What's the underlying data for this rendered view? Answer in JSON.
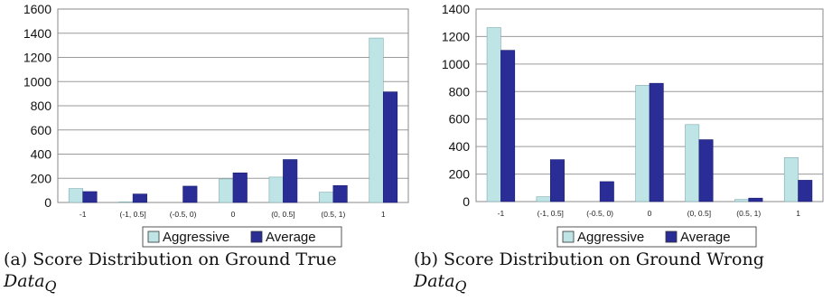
{
  "chart_data": [
    {
      "type": "bar",
      "categories": [
        "-1",
        "(-1, 0.5]",
        "(-0.5, 0)",
        "0",
        "(0, 0.5]",
        "(0.5, 1)",
        "1"
      ],
      "series": [
        {
          "name": "Aggressive",
          "values": [
            115,
            5,
            0,
            195,
            210,
            85,
            1360
          ]
        },
        {
          "name": "Average",
          "values": [
            90,
            70,
            135,
            245,
            355,
            140,
            915
          ]
        }
      ],
      "yticks": [
        0,
        200,
        400,
        600,
        800,
        1000,
        1200,
        1400,
        1600
      ],
      "ylim": [
        0,
        1600
      ],
      "grid": true,
      "legend_position": "bottom-center",
      "colors": {
        "Aggressive": "#bfe4e6",
        "Average": "#2a2d96"
      }
    },
    {
      "type": "bar",
      "categories": [
        "-1",
        "(-1, 0.5]",
        "(-0.5, 0)",
        "0",
        "(0, 0.5]",
        "(0.5, 1)",
        "1"
      ],
      "series": [
        {
          "name": "Aggressive",
          "values": [
            1265,
            35,
            0,
            845,
            560,
            15,
            320
          ]
        },
        {
          "name": "Average",
          "values": [
            1100,
            305,
            145,
            860,
            450,
            25,
            155
          ]
        }
      ],
      "yticks": [
        0,
        200,
        400,
        600,
        800,
        1000,
        1200,
        1400
      ],
      "ylim": [
        0,
        1400
      ],
      "grid": true,
      "legend_position": "bottom-center",
      "colors": {
        "Aggressive": "#bfe4e6",
        "Average": "#2a2d96"
      }
    }
  ],
  "legend": {
    "aggressive": "Aggressive",
    "average": "Average"
  },
  "captions": {
    "a": {
      "label": "(a) Score Distribution on Ground True",
      "sub_main": "Data",
      "sub_script": "Q"
    },
    "b": {
      "label": "(b) Score Distribution on Ground Wrong",
      "sub_main": "Data",
      "sub_script": "Q"
    }
  }
}
